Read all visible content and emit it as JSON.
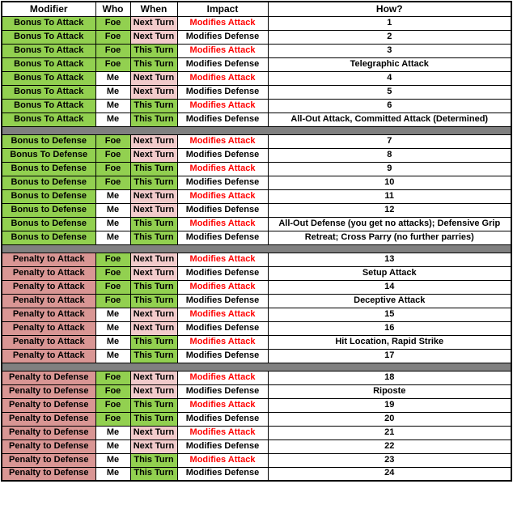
{
  "columns": [
    "Modifier",
    "Who",
    "When",
    "Impact",
    "How?"
  ],
  "colors": {
    "group_green": "#92D050",
    "group_pink": "#D99694",
    "next_turn_pink": "#F2CBCB",
    "this_turn_green": "#92D050",
    "attack_red": "#FF0000",
    "separator_gray": "#808080",
    "border_black": "#000000"
  },
  "rows": [
    {
      "modifier": "Bonus To Attack",
      "group": "bonus",
      "who": "Foe",
      "when": "Next Turn",
      "impact": "Modifies Attack",
      "how": "1"
    },
    {
      "modifier": "Bonus To Attack",
      "group": "bonus",
      "who": "Foe",
      "when": "Next Turn",
      "impact": "Modifies Defense",
      "how": "2"
    },
    {
      "modifier": "Bonus To Attack",
      "group": "bonus",
      "who": "Foe",
      "when": "This Turn",
      "impact": "Modifies Attack",
      "how": "3"
    },
    {
      "modifier": "Bonus To Attack",
      "group": "bonus",
      "who": "Foe",
      "when": "This Turn",
      "impact": "Modifies Defense",
      "how": "Telegraphic Attack"
    },
    {
      "modifier": "Bonus To Attack",
      "group": "bonus",
      "who": "Me",
      "when": "Next Turn",
      "impact": "Modifies Attack",
      "how": "4"
    },
    {
      "modifier": "Bonus To Attack",
      "group": "bonus",
      "who": "Me",
      "when": "Next Turn",
      "impact": "Modifies Defense",
      "how": "5"
    },
    {
      "modifier": "Bonus To Attack",
      "group": "bonus",
      "who": "Me",
      "when": "This Turn",
      "impact": "Modifies Attack",
      "how": "6"
    },
    {
      "modifier": "Bonus To Attack",
      "group": "bonus",
      "who": "Me",
      "when": "This Turn",
      "impact": "Modifies Defense",
      "how": "All-Out Attack, Committed Attack (Determined)"
    },
    {
      "separator": true
    },
    {
      "modifier": "Bonus to Defense",
      "group": "bonus",
      "who": "Foe",
      "when": "Next Turn",
      "impact": "Modifies Attack",
      "how": "7"
    },
    {
      "modifier": "Bonus To Defense",
      "group": "bonus",
      "who": "Foe",
      "when": "Next Turn",
      "impact": "Modifies Defense",
      "how": "8"
    },
    {
      "modifier": "Bonus to Defense",
      "group": "bonus",
      "who": "Foe",
      "when": "This Turn",
      "impact": "Modifies Attack",
      "how": "9"
    },
    {
      "modifier": "Bonus to Defense",
      "group": "bonus",
      "who": "Foe",
      "when": "This Turn",
      "impact": "Modifies Defense",
      "how": "10"
    },
    {
      "modifier": "Bonus to Defense",
      "group": "bonus",
      "who": "Me",
      "when": "Next Turn",
      "impact": "Modifies Attack",
      "how": "11"
    },
    {
      "modifier": "Bonus to Defense",
      "group": "bonus",
      "who": "Me",
      "when": "Next Turn",
      "impact": "Modifies Defense",
      "how": "12"
    },
    {
      "modifier": "Bonus to Defense",
      "group": "bonus",
      "who": "Me",
      "when": "This Turn",
      "impact": "Modifies Attack",
      "how": "All-Out Defense (you get no attacks); Defensive Grip"
    },
    {
      "modifier": "Bonus to Defense",
      "group": "bonus",
      "who": "Me",
      "when": "This Turn",
      "impact": "Modifies Defense",
      "how": "Retreat; Cross Parry (no further parries)"
    },
    {
      "separator": true
    },
    {
      "modifier": "Penalty to Attack",
      "group": "penalty",
      "who": "Foe",
      "when": "Next Turn",
      "impact": "Modifies Attack",
      "how": "13"
    },
    {
      "modifier": "Penalty to Attack",
      "group": "penalty",
      "who": "Foe",
      "when": "Next Turn",
      "impact": "Modifies Defense",
      "how": "Setup Attack"
    },
    {
      "modifier": "Penalty to Attack",
      "group": "penalty",
      "who": "Foe",
      "when": "This Turn",
      "impact": "Modifies Attack",
      "how": "14"
    },
    {
      "modifier": "Penalty to Attack",
      "group": "penalty",
      "who": "Foe",
      "when": "This Turn",
      "impact": "Modifies Defense",
      "how": "Deceptive Attack"
    },
    {
      "modifier": "Penalty to Attack",
      "group": "penalty",
      "who": "Me",
      "when": "Next Turn",
      "impact": "Modifies Attack",
      "how": "15"
    },
    {
      "modifier": "Penalty to Attack",
      "group": "penalty",
      "who": "Me",
      "when": "Next Turn",
      "impact": "Modifies Defense",
      "how": "16"
    },
    {
      "modifier": "Penalty to Attack",
      "group": "penalty",
      "who": "Me",
      "when": "This Turn",
      "impact": "Modifies Attack",
      "how": "Hit Location, Rapid Strike"
    },
    {
      "modifier": "Penalty to Attack",
      "group": "penalty",
      "who": "Me",
      "when": "This Turn",
      "impact": "Modifies Defense",
      "how": "17"
    },
    {
      "separator": true
    },
    {
      "modifier": "Penalty to Defense",
      "group": "penalty",
      "who": "Foe",
      "when": "Next Turn",
      "impact": "Modifies Attack",
      "how": "18"
    },
    {
      "modifier": "Penalty to Defense",
      "group": "penalty",
      "who": "Foe",
      "when": "Next Turn",
      "impact": "Modifies Defense",
      "how": "Riposte"
    },
    {
      "modifier": "Penalty to Defense",
      "group": "penalty",
      "who": "Foe",
      "when": "This Turn",
      "impact": "Modifies Attack",
      "how": "19"
    },
    {
      "modifier": "Penalty to Defense",
      "group": "penalty",
      "who": "Foe",
      "when": "This Turn",
      "impact": "Modifies Defense",
      "how": "20"
    },
    {
      "modifier": "Penalty to Defense",
      "group": "penalty",
      "who": "Me",
      "when": "Next Turn",
      "impact": "Modifies Attack",
      "how": "21"
    },
    {
      "modifier": "Penalty to Defense",
      "group": "penalty",
      "who": "Me",
      "when": "Next Turn",
      "impact": "Modifies Defense",
      "how": "22"
    },
    {
      "modifier": "Penalty to Defense",
      "group": "penalty",
      "who": "Me",
      "when": "This Turn",
      "impact": "Modifies Attack",
      "how": "23"
    },
    {
      "modifier": "Penalty to Defense",
      "group": "penalty",
      "who": "Me",
      "when": "This Turn",
      "impact": "Modifies Defense",
      "how": "24"
    }
  ]
}
